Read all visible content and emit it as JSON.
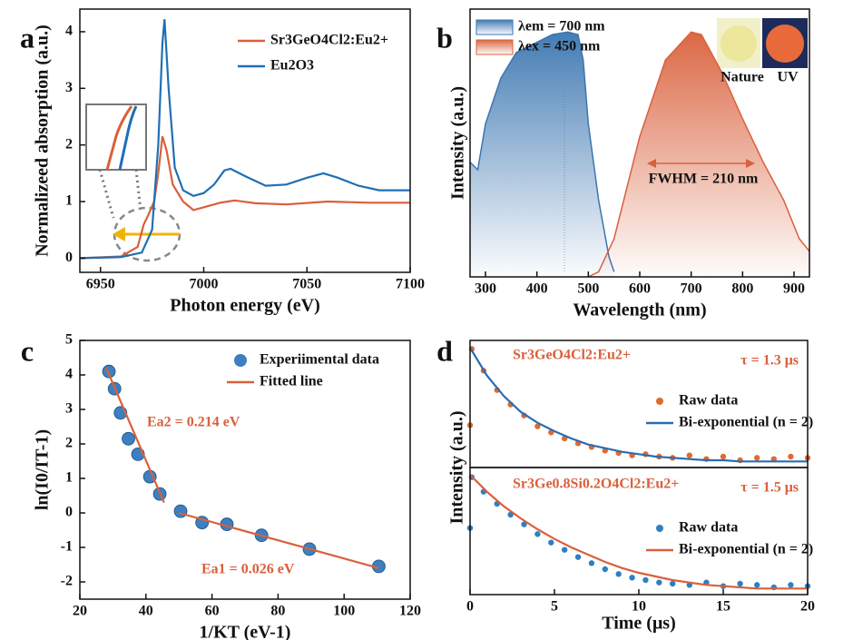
{
  "chart_data": [
    {
      "type": "line",
      "label": "a",
      "xlabel": "Photon energy (eV)",
      "ylabel": "Normalizeed absorption (a.u.)",
      "xlim": [
        6940,
        7100
      ],
      "xticks": [
        6950,
        7000,
        7050,
        7100
      ],
      "ylim": [
        -0.25,
        4.4
      ],
      "yticks": [
        0,
        1,
        2,
        3,
        4
      ],
      "series": [
        {
          "name": "Sr3GeO4Cl2:Eu2+",
          "color": "#d9603b",
          "x": [
            6940,
            6960,
            6968,
            6971,
            6973,
            6976,
            6978,
            6980,
            6982,
            6985,
            6990,
            6995,
            7000,
            7008,
            7015,
            7025,
            7040,
            7060,
            7080,
            7100
          ],
          "values": [
            0,
            0.03,
            0.2,
            0.6,
            0.75,
            1.0,
            1.5,
            2.15,
            1.9,
            1.3,
            1.0,
            0.85,
            0.9,
            0.98,
            1.02,
            0.97,
            0.95,
            1.0,
            0.98,
            0.98
          ]
        },
        {
          "name": "Eu2O3",
          "color": "#1f6fb5",
          "x": [
            6940,
            6960,
            6970,
            6975,
            6978,
            6980,
            6981,
            6983,
            6986,
            6990,
            6995,
            7000,
            7005,
            7010,
            7013,
            7020,
            7030,
            7040,
            7050,
            7058,
            7065,
            7075,
            7085,
            7100
          ],
          "values": [
            0,
            0.02,
            0.1,
            0.5,
            2.0,
            3.8,
            4.22,
            3.0,
            1.6,
            1.2,
            1.1,
            1.15,
            1.3,
            1.55,
            1.58,
            1.45,
            1.28,
            1.3,
            1.42,
            1.5,
            1.42,
            1.28,
            1.2,
            1.2
          ]
        }
      ]
    },
    {
      "type": "area",
      "label": "b",
      "xlabel": "Wavelength (nm)",
      "ylabel": "Intensity (a.u.)",
      "xlim": [
        270,
        930
      ],
      "xticks": [
        300,
        400,
        500,
        600,
        700,
        800,
        900
      ],
      "ylim": [
        0,
        1.05
      ],
      "series": [
        {
          "name": "λem = 700 nm",
          "color": "#3a75b0",
          "x": [
            270,
            285,
            300,
            330,
            360,
            400,
            430,
            460,
            480,
            490,
            500,
            520,
            540,
            550
          ],
          "values": [
            0.45,
            0.42,
            0.6,
            0.78,
            0.88,
            0.92,
            0.95,
            0.96,
            0.95,
            0.85,
            0.6,
            0.3,
            0.08,
            0.02
          ]
        },
        {
          "name": "λex = 450 nm",
          "color": "#d9603b",
          "x": [
            500,
            520,
            550,
            600,
            650,
            700,
            720,
            760,
            800,
            840,
            880,
            910,
            930
          ],
          "values": [
            0,
            0.02,
            0.15,
            0.55,
            0.85,
            0.96,
            0.95,
            0.8,
            0.62,
            0.45,
            0.3,
            0.15,
            0.1
          ]
        }
      ],
      "annotations": [
        "FWHM = 210 nm",
        "Nature",
        "UV"
      ]
    },
    {
      "type": "scatter",
      "label": "c",
      "xlabel": "1/KT (eV-1)",
      "ylabel": "ln(I0/IT-1)",
      "xlim": [
        20,
        120
      ],
      "xticks": [
        20,
        40,
        60,
        80,
        100,
        120
      ],
      "ylim": [
        -2.5,
        5
      ],
      "yticks": [
        -2,
        -1,
        0,
        1,
        2,
        3,
        4,
        5
      ],
      "series": [
        {
          "name": "Experiimental data",
          "type": "points",
          "color": "#3d7fc0",
          "x": [
            28.8,
            30.5,
            32.3,
            34.7,
            37.6,
            41.2,
            44.2,
            50.5,
            57,
            64.5,
            75,
            89.5,
            110.5
          ],
          "values": [
            4.1,
            3.6,
            2.9,
            2.15,
            1.7,
            1.05,
            0.55,
            0.05,
            -0.28,
            -0.33,
            -0.65,
            -1.05,
            -1.55
          ]
        },
        {
          "name": "Fitted line",
          "type": "line",
          "color": "#d9603b",
          "x": [
            28,
            45.5,
            48,
            50,
            110.5
          ],
          "values": [
            4.2,
            0.3,
            null,
            0,
            -1.6
          ]
        }
      ],
      "annotations": [
        "Ea2 = 0.214 eV",
        "Ea1 = 0.026 eV"
      ]
    },
    {
      "type": "scatter",
      "label": "d",
      "ylabel": "Intensity (a.u.)",
      "xlim": [
        0,
        20
      ],
      "ylim": [
        0,
        1.05
      ],
      "series": [
        {
          "name": "Raw data",
          "type": "points",
          "color": "#e06a2c",
          "x": [
            0,
            0.1,
            0.8,
            1.6,
            2.4,
            3.2,
            4,
            4.8,
            5.6,
            6.4,
            7.2,
            8,
            8.8,
            9.6,
            10.4,
            11.2,
            12,
            13,
            14,
            15,
            16,
            17,
            18,
            19,
            20
          ],
          "values": [
            0.35,
            0.98,
            0.8,
            0.64,
            0.52,
            0.43,
            0.34,
            0.29,
            0.24,
            0.2,
            0.17,
            0.14,
            0.12,
            0.1,
            0.11,
            0.09,
            0.08,
            0.1,
            0.07,
            0.09,
            0.06,
            0.08,
            0.07,
            0.09,
            0.08
          ]
        },
        {
          "name": "Bi-exponential (n = 2)",
          "type": "line",
          "color": "#2b6cb0",
          "x": [
            0,
            1,
            2,
            3,
            4,
            5,
            6,
            7,
            8,
            9,
            10,
            11,
            12,
            13,
            14,
            15,
            16,
            17,
            18,
            19,
            20
          ],
          "values": [
            0.99,
            0.76,
            0.59,
            0.46,
            0.37,
            0.3,
            0.24,
            0.19,
            0.16,
            0.13,
            0.11,
            0.09,
            0.08,
            0.07,
            0.06,
            0.06,
            0.05,
            0.05,
            0.05,
            0.05,
            0.05
          ]
        }
      ],
      "annotations": [
        "Sr3GeO4Cl2:Eu2+",
        "τ = 1.3 μs"
      ]
    },
    {
      "type": "scatter",
      "xlabel": "Time (μs)",
      "xlim": [
        0,
        20
      ],
      "xticks": [
        0,
        5,
        10,
        15,
        20
      ],
      "ylim": [
        0,
        1.05
      ],
      "series": [
        {
          "name": "Raw data",
          "type": "points",
          "color": "#2f7fc1",
          "x": [
            0,
            0.1,
            0.8,
            1.6,
            2.4,
            3.2,
            4,
            4.8,
            5.6,
            6.4,
            7.2,
            8,
            8.8,
            9.6,
            10.4,
            11.2,
            12,
            13,
            14,
            15,
            16,
            17,
            18,
            19,
            20
          ],
          "values": [
            0.55,
            0.97,
            0.85,
            0.75,
            0.66,
            0.58,
            0.5,
            0.43,
            0.37,
            0.31,
            0.26,
            0.21,
            0.17,
            0.14,
            0.12,
            0.1,
            0.09,
            0.08,
            0.1,
            0.07,
            0.09,
            0.08,
            0.06,
            0.08,
            0.07
          ]
        },
        {
          "name": "Bi-exponential (n = 2)",
          "type": "line",
          "color": "#d9603b",
          "x": [
            0,
            1,
            2,
            3,
            4,
            5,
            6,
            7,
            8,
            9,
            10,
            11,
            12,
            13,
            14,
            15,
            16,
            17,
            18,
            19,
            20
          ],
          "values": [
            0.99,
            0.85,
            0.73,
            0.63,
            0.54,
            0.46,
            0.39,
            0.33,
            0.27,
            0.22,
            0.18,
            0.15,
            0.12,
            0.1,
            0.08,
            0.07,
            0.06,
            0.05,
            0.05,
            0.05,
            0.05
          ]
        }
      ],
      "annotations": [
        "Sr3Ge0.8Si0.2O4Cl2:Eu2+",
        "τ = 1.5 μs"
      ]
    }
  ]
}
